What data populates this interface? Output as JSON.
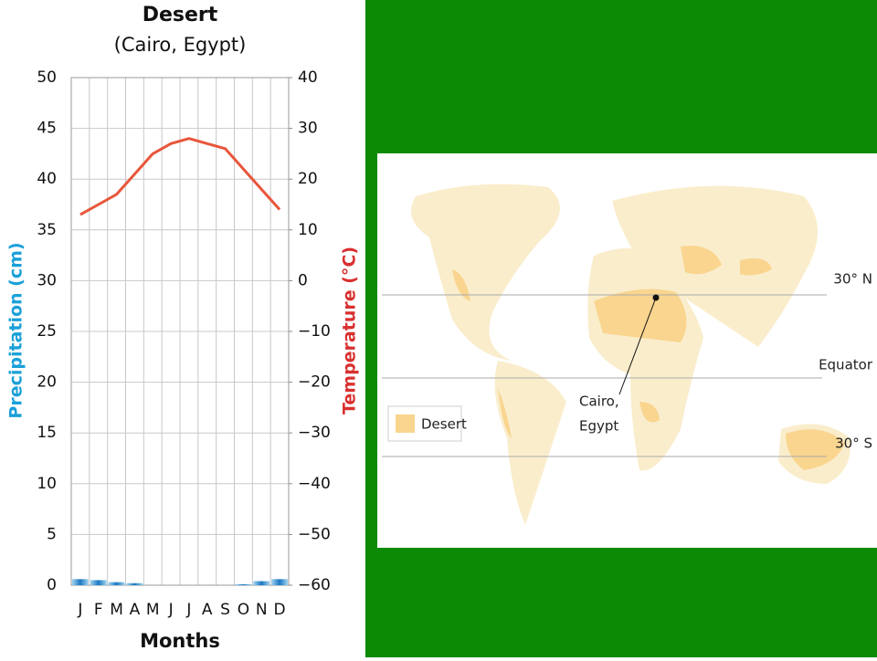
{
  "chart_data": {
    "type": "combo",
    "title": "Desert",
    "subtitle": "(Cairo, Egypt)",
    "x_label": "Months",
    "y_label": "Precipitation (cm)",
    "y2_label": "Temperature (°C)",
    "categories": [
      "J",
      "F",
      "M",
      "A",
      "M",
      "J",
      "J",
      "A",
      "S",
      "O",
      "N",
      "D"
    ],
    "series": [
      {
        "name": "Precipitation",
        "type": "bar",
        "color": "#2a9fd6",
        "values": [
          0.6,
          0.5,
          0.3,
          0.2,
          0,
          0,
          0,
          0,
          0,
          0.1,
          0.4,
          0.6
        ]
      },
      {
        "name": "Temperature",
        "type": "line",
        "axis": "y2",
        "color": "#e8563a",
        "values": [
          13,
          15,
          17,
          21,
          25,
          27,
          28,
          27,
          26,
          22,
          18,
          14
        ]
      }
    ],
    "ylim": [
      0,
      50
    ],
    "yticks": [
      0,
      5,
      10,
      15,
      20,
      25,
      30,
      35,
      40,
      45,
      50
    ],
    "y2lim": [
      -60,
      40
    ],
    "y2ticks": [
      {
        "value": -60,
        "label": "−60"
      },
      {
        "value": -50,
        "label": "−50"
      },
      {
        "value": -40,
        "label": "−40"
      },
      {
        "value": -30,
        "label": "−30"
      },
      {
        "value": -20,
        "label": "−20"
      },
      {
        "value": -10,
        "label": "−10"
      },
      0,
      10,
      20,
      30,
      40
    ],
    "grid": true
  },
  "map": {
    "lat_30n": "30° N",
    "equator": "Equator",
    "lat_30s": "30° S",
    "legend": "Desert",
    "city": [
      "Cairo,",
      "Egypt"
    ]
  }
}
